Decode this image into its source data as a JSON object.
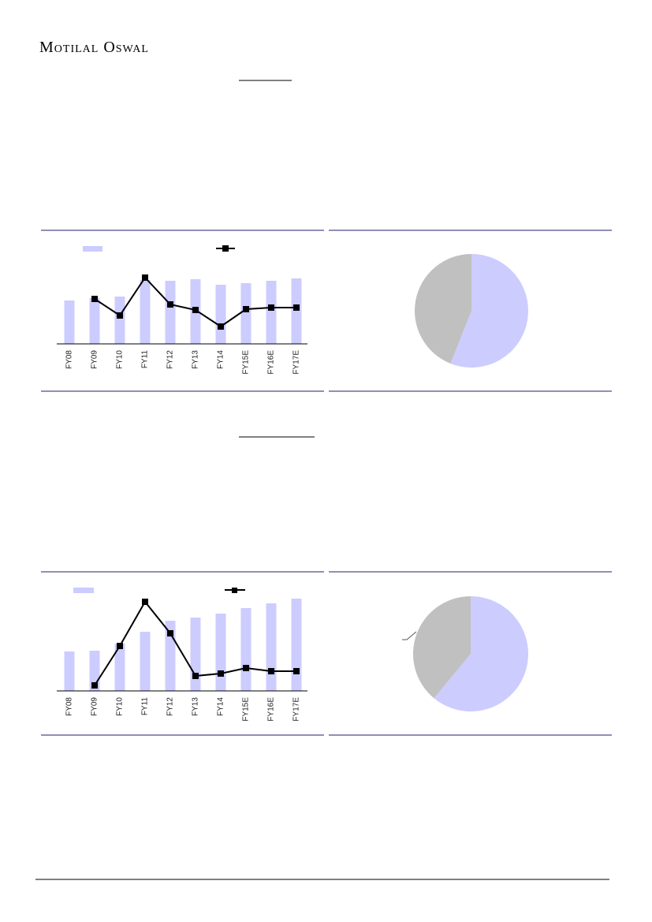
{
  "header": {
    "brand": "Motilal Oswal"
  },
  "chart_data": [
    {
      "type": "combo",
      "categories": [
        "FY08",
        "FY09",
        "FY10",
        "FY11",
        "FY12",
        "FY13",
        "FY14",
        "FY15E",
        "FY16E",
        "FY17E"
      ],
      "series": [
        {
          "type": "bar",
          "color": "#ccccff",
          "values": [
            55,
            58,
            60,
            81,
            80,
            82,
            75,
            77,
            80,
            83
          ]
        },
        {
          "type": "line",
          "color": "#000000",
          "values": [
            null,
            57,
            36,
            84,
            50,
            43,
            22,
            44,
            46,
            46
          ]
        }
      ],
      "ylim": [
        0,
        100
      ]
    },
    {
      "type": "pie",
      "values": [
        56,
        44
      ],
      "colors": [
        "#ccccff",
        "#c0c0c0"
      ]
    },
    {
      "type": "combo",
      "categories": [
        "FY08",
        "FY09",
        "FY10",
        "FY11",
        "FY12",
        "FY13",
        "FY14",
        "FY15E",
        "FY16E",
        "FY17E"
      ],
      "series": [
        {
          "type": "bar",
          "color": "#ccccff",
          "values": [
            50,
            51,
            60,
            75,
            89,
            93,
            98,
            105,
            111,
            117
          ]
        },
        {
          "type": "line",
          "color": "#000000",
          "values": [
            null,
            7,
            57,
            113,
            73,
            19,
            22,
            29,
            25,
            25
          ]
        }
      ],
      "ylim": [
        0,
        120
      ]
    },
    {
      "type": "pie",
      "values": [
        61,
        39
      ],
      "colors": [
        "#ccccff",
        "#c0c0c0"
      ]
    }
  ]
}
